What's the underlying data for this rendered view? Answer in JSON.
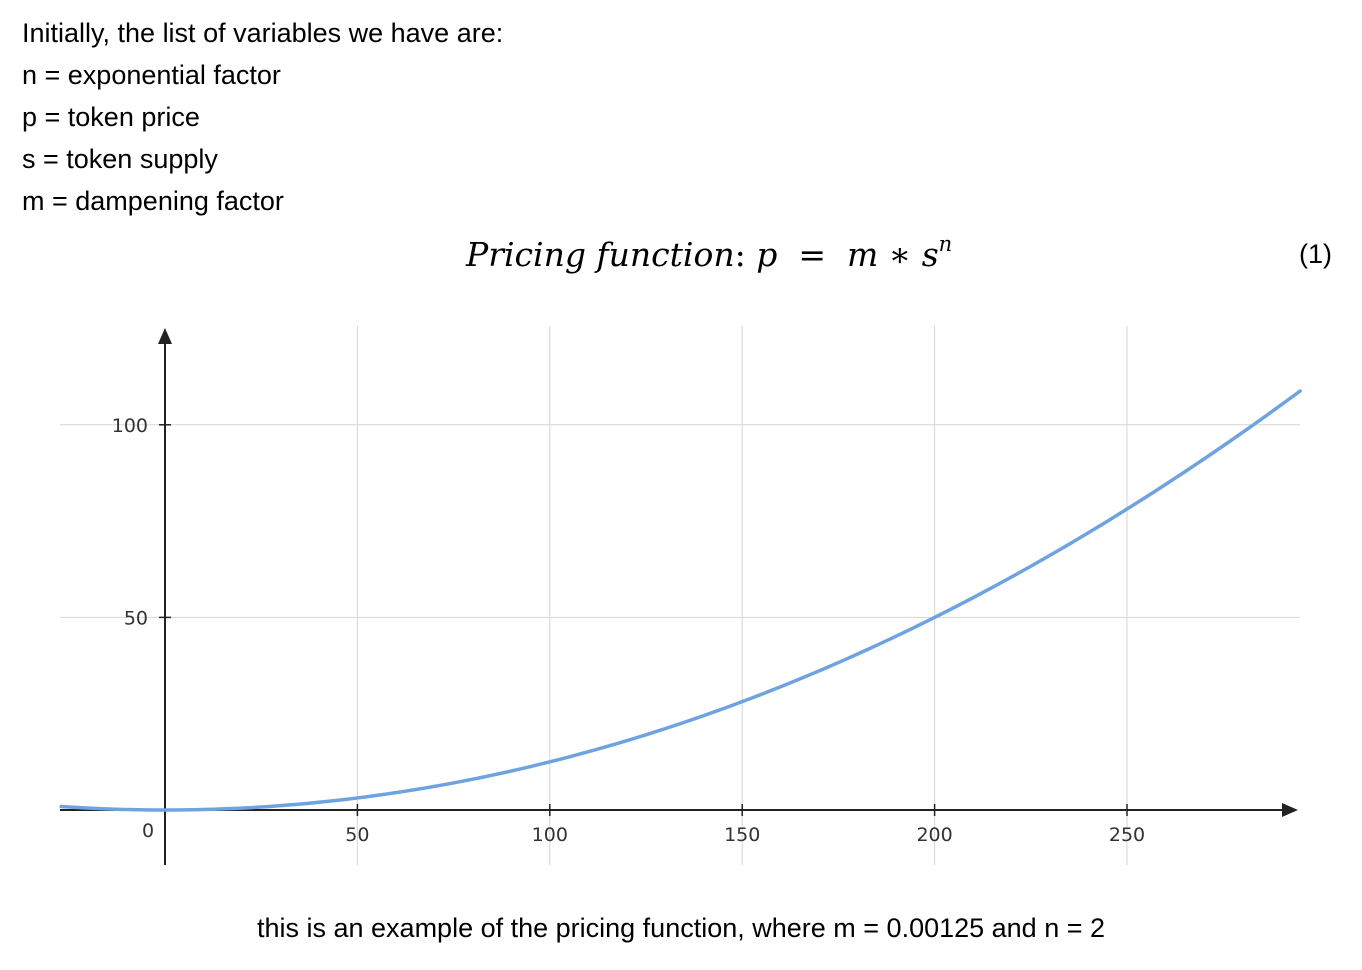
{
  "variables": {
    "intro": "Initially, the list of variables we have are:",
    "n": "n = exponential factor",
    "p": "p = token price",
    "s": "s = token supply",
    "m": "m = dampening factor"
  },
  "equation": {
    "label": "Pricing function",
    "colon": ":",
    "lhs": "p",
    "equals": "=",
    "m": "m",
    "times": "∗",
    "base": "s",
    "exponent": "n",
    "number": "(1)"
  },
  "caption": "this is an example of the pricing function, where m = 0.00125 and n = 2",
  "chart_data": {
    "type": "line",
    "title": "",
    "xlabel": "",
    "ylabel": "",
    "xlim": [
      -27,
      295
    ],
    "ylim": [
      -14,
      126
    ],
    "x_ticks": [
      "0",
      "50",
      "100",
      "150",
      "200",
      "250"
    ],
    "y_ticks": [
      "50",
      "100"
    ],
    "grid": true,
    "line_color": "#6fa3e0",
    "series": [
      {
        "x": [
          -27,
          0,
          25,
          50,
          75,
          100,
          125,
          150,
          175,
          200,
          225,
          250,
          275,
          295
        ],
        "y": [
          0.91,
          0,
          0.78,
          3.13,
          7.03,
          12.5,
          19.53,
          28.13,
          38.28,
          50,
          63.28,
          78.13,
          94.53,
          108.78
        ]
      }
    ]
  }
}
